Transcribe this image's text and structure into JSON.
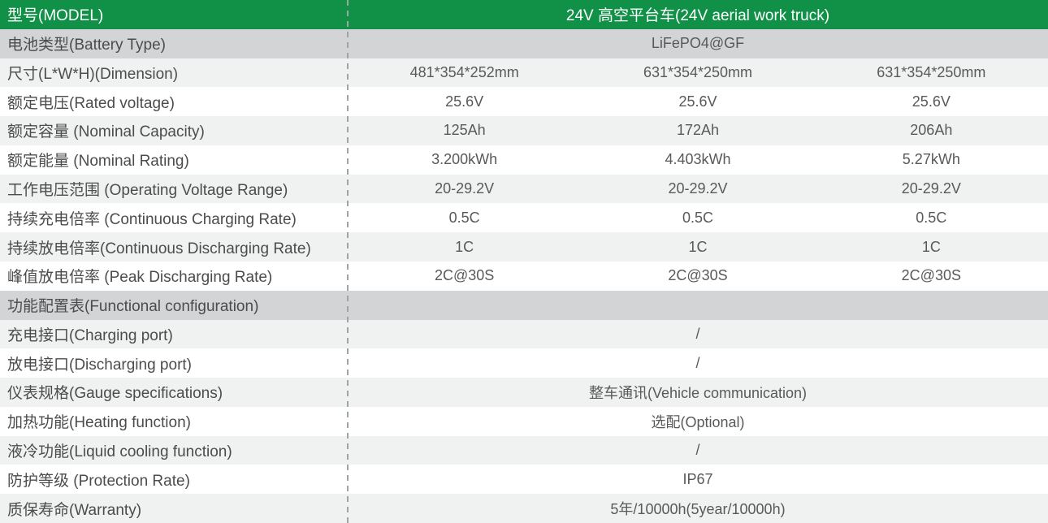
{
  "colors": {
    "header_green": "#119148",
    "section_gray": "#d2d4d5",
    "row_light_gray": "#f0f2f2",
    "row_white": "#ffffff",
    "label_text": "#4b4c4d",
    "value_text": "#58595a",
    "header_text": "#ffffff"
  },
  "table": {
    "header": {
      "label": "型号(MODEL)",
      "value": "24V 高空平台车(24V aerial work truck)"
    },
    "spec_rows": [
      {
        "label": "电池类型(Battery Type)",
        "value": "LiFePO4@GF"
      },
      {
        "label": "尺寸(L*W*H)(Dimension)",
        "values": [
          "481*354*252mm",
          "631*354*250mm",
          "631*354*250mm"
        ]
      },
      {
        "label": "额定电压(Rated voltage)",
        "values": [
          "25.6V",
          "25.6V",
          "25.6V"
        ]
      },
      {
        "label": "额定容量 (Nominal Capacity)",
        "values": [
          "125Ah",
          "172Ah",
          "206Ah"
        ]
      },
      {
        "label": "额定能量 (Nominal Rating)",
        "values": [
          "3.200kWh",
          "4.403kWh",
          "5.27kWh"
        ]
      },
      {
        "label": "工作电压范围 (Operating Voltage Range)",
        "values": [
          "20-29.2V",
          "20-29.2V",
          "20-29.2V"
        ]
      },
      {
        "label": "持续充电倍率 (Continuous Charging Rate)",
        "values": [
          "0.5C",
          "0.5C",
          "0.5C"
        ]
      },
      {
        "label": "持续放电倍率(Continuous Discharging Rate)",
        "values": [
          "1C",
          "1C",
          "1C"
        ]
      },
      {
        "label": "峰值放电倍率 (Peak Discharging Rate)",
        "values": [
          "2C@30S",
          "2C@30S",
          "2C@30S"
        ]
      }
    ],
    "section_header": "功能配置表(Functional configuration)",
    "config_rows": [
      {
        "label": "充电接口(Charging port)",
        "value": "/"
      },
      {
        "label": "放电接口(Discharging port)",
        "value": "/"
      },
      {
        "label": "仪表规格(Gauge specifications)",
        "value": "整车通讯(Vehicle communication)"
      },
      {
        "label": "加热功能(Heating function)",
        "value": "选配(Optional)"
      },
      {
        "label": "液冷功能(Liquid cooling function)",
        "value": "/"
      },
      {
        "label": "防护等级 (Protection Rate)",
        "value": "IP67"
      },
      {
        "label": "质保寿命(Warranty)",
        "value": "5年/10000h(5year/10000h)"
      }
    ]
  }
}
